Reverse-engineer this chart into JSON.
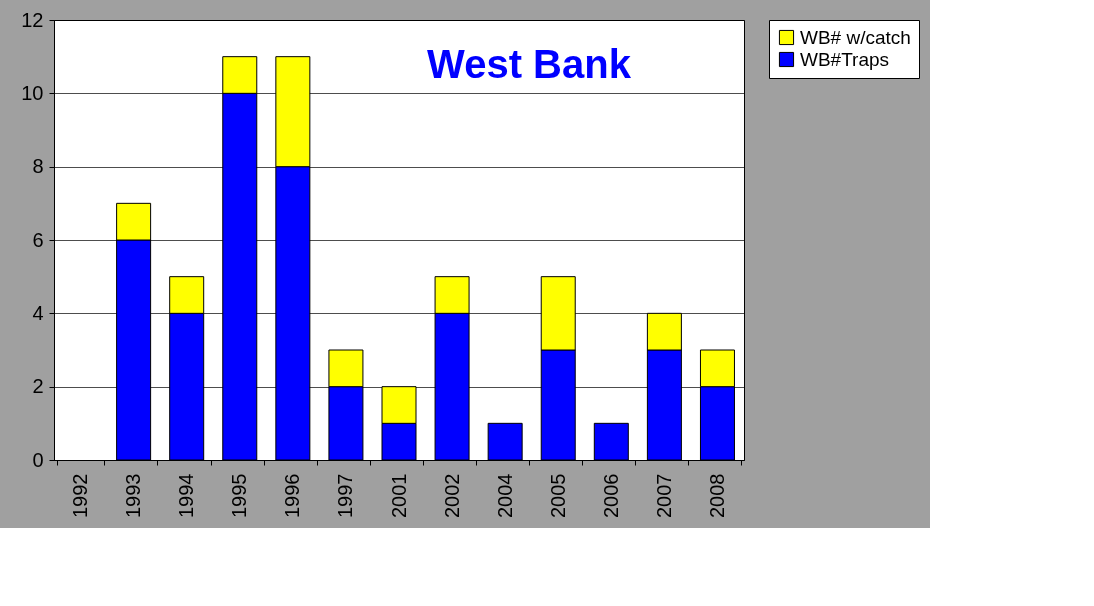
{
  "chart_data": {
    "type": "bar",
    "title": "West Bank",
    "stacked": true,
    "categories": [
      "1992",
      "1993",
      "1994",
      "1995",
      "1996",
      "1997",
      "2001",
      "2002",
      "2004",
      "2005",
      "2006",
      "2007",
      "2008"
    ],
    "series": [
      {
        "name": "WB#Traps",
        "color": "#0000ff",
        "values": [
          null,
          6,
          4,
          10,
          8,
          2,
          1,
          4,
          1,
          3,
          1,
          3,
          2
        ]
      },
      {
        "name": "WB# w/catch",
        "color": "#ffff00",
        "values": [
          null,
          1,
          1,
          1,
          3,
          1,
          1,
          1,
          null,
          2,
          null,
          1,
          1
        ]
      }
    ],
    "ylim": [
      0,
      12
    ],
    "yticks": [
      0,
      2,
      4,
      6,
      8,
      10,
      12
    ],
    "grid": "y",
    "legend": "right"
  }
}
